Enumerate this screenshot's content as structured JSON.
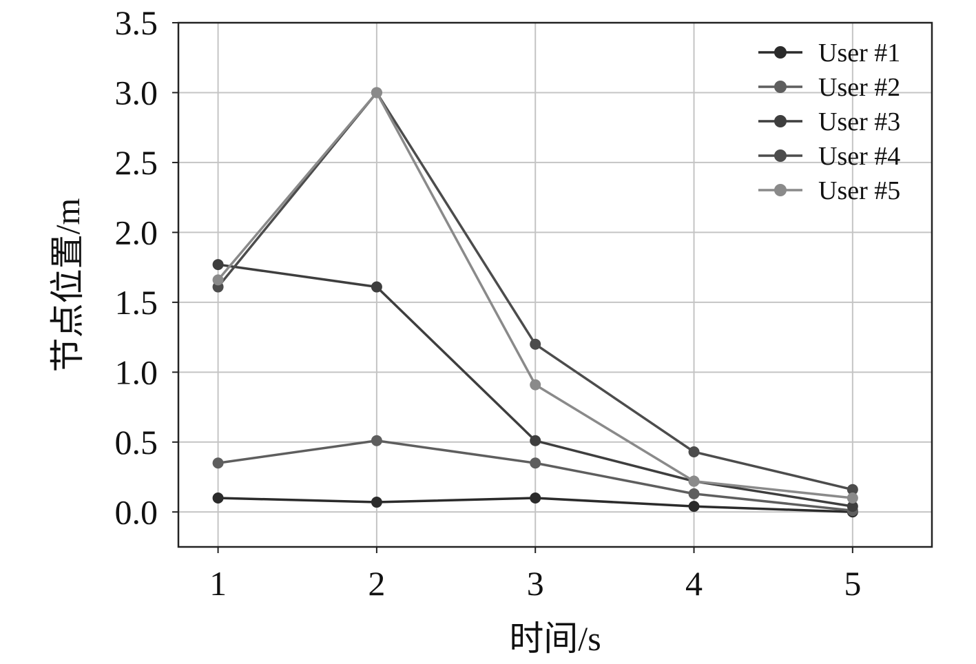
{
  "chart_data": {
    "type": "line",
    "title": "",
    "xlabel": "时间/s",
    "ylabel": "节点位置/m",
    "x": [
      1,
      2,
      3,
      4,
      5
    ],
    "xticks": [
      "1",
      "2",
      "3",
      "4",
      "5"
    ],
    "yticks": [
      "0.0",
      "0.5",
      "1.0",
      "1.5",
      "2.0",
      "2.5",
      "3.0",
      "3.5"
    ],
    "xlim": [
      0.75,
      5.5
    ],
    "ylim": [
      -0.25,
      3.5
    ],
    "grid": true,
    "legend_position": "top-right",
    "series": [
      {
        "name": "User #1",
        "color": "#2b2b2b",
        "values": [
          0.1,
          0.07,
          0.1,
          0.04,
          0.0
        ]
      },
      {
        "name": "User #2",
        "color": "#5e5e5e",
        "values": [
          0.35,
          0.51,
          0.35,
          0.13,
          0.01
        ]
      },
      {
        "name": "User #3",
        "color": "#3e3e3e",
        "values": [
          1.77,
          1.61,
          0.51,
          0.22,
          0.04
        ]
      },
      {
        "name": "User #4",
        "color": "#4c4c4c",
        "values": [
          1.61,
          3.0,
          1.2,
          0.43,
          0.16
        ]
      },
      {
        "name": "User #5",
        "color": "#8a8a8a",
        "values": [
          1.66,
          3.0,
          0.91,
          0.22,
          0.1
        ]
      }
    ]
  }
}
